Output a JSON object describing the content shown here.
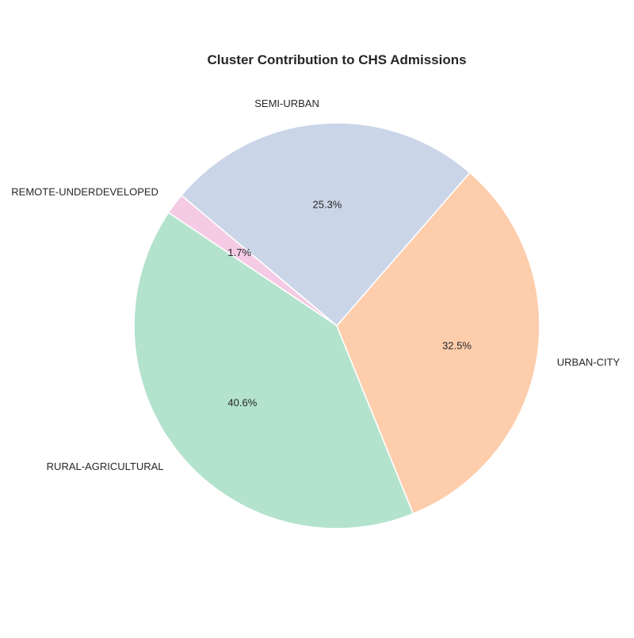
{
  "chart_data": {
    "type": "pie",
    "title": "Cluster Contribution to CHS Admissions",
    "start_angle_deg": 140,
    "direction": "counterclockwise",
    "slices": [
      {
        "label": "REMOTE-UNDERDEVELOPED",
        "value": 1.7,
        "pct_label": "1.7%",
        "color": "#f4cae4"
      },
      {
        "label": "RURAL-AGRICULTURAL",
        "value": 40.6,
        "pct_label": "40.6%",
        "color": "#b3e2cd"
      },
      {
        "label": "URBAN-CITY",
        "value": 32.5,
        "pct_label": "32.5%",
        "color": "#fdcdac"
      },
      {
        "label": "SEMI-URBAN",
        "value": 25.3,
        "pct_label": "25.3%",
        "color": "#cbd5e8"
      }
    ]
  }
}
